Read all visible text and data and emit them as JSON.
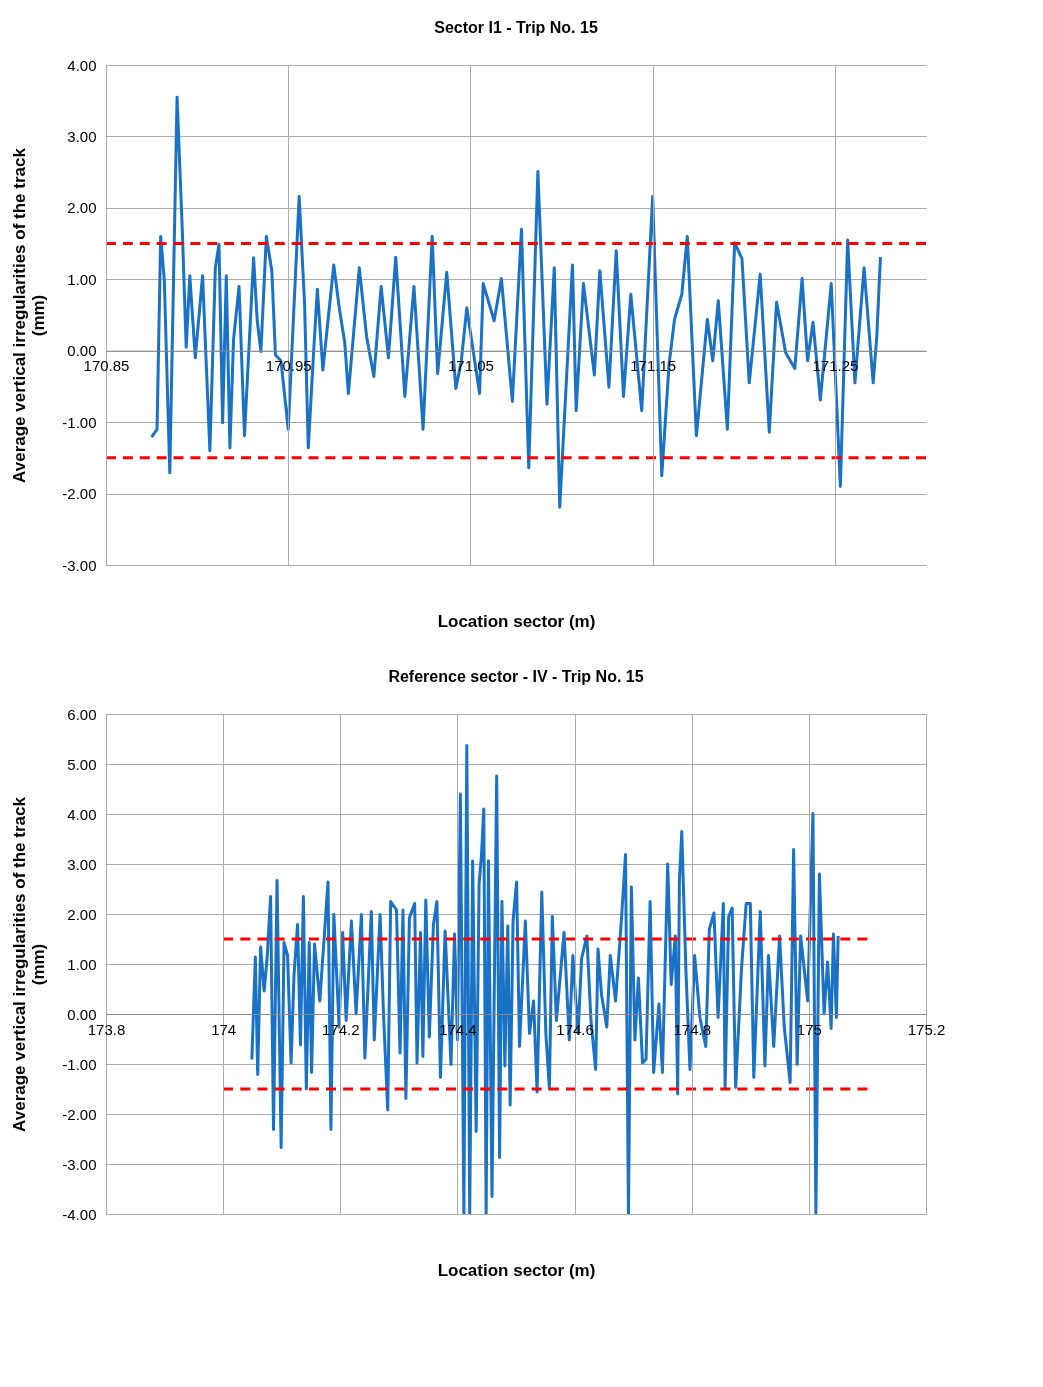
{
  "chart_data": [
    {
      "type": "line",
      "title": "Sector I1 - Trip No. 15",
      "xlabel": "Location sector (m)",
      "ylabel": "Average vertical irregularities of the track\n(mm)",
      "xlim": [
        170.85,
        171.3
      ],
      "xticks": [
        170.85,
        170.95,
        171.05,
        171.15,
        171.25
      ],
      "ylim": [
        -3,
        4
      ],
      "yticks": [
        {
          "value": -3,
          "label": "-3.00"
        },
        {
          "value": -2,
          "label": "-2.00"
        },
        {
          "value": -1,
          "label": "-1.00"
        },
        {
          "value": 0,
          "label": "0.00"
        },
        {
          "value": 1,
          "label": "1.00"
        },
        {
          "value": 2,
          "label": "2.00"
        },
        {
          "value": 3,
          "label": "3.00"
        },
        {
          "value": 4,
          "label": "4.00"
        }
      ],
      "grid": true,
      "ref_lines": [
        {
          "axis": "y",
          "value": 1.5,
          "color": "#ff0000",
          "line_style": "dashed"
        },
        {
          "axis": "y",
          "value": -1.5,
          "color": "#ff0000",
          "line_style": "dashed"
        }
      ],
      "series": [
        {
          "color": "#1a72c6",
          "x": [
            170.875,
            170.878,
            170.88,
            170.882,
            170.885,
            170.889,
            170.892,
            170.894,
            170.896,
            170.899,
            170.903,
            170.907,
            170.91,
            170.912,
            170.914,
            170.916,
            170.918,
            170.92,
            170.923,
            170.926,
            170.931,
            170.933,
            170.935,
            170.938,
            170.941,
            170.943,
            170.946,
            170.95,
            170.956,
            170.959,
            170.961,
            170.964,
            170.966,
            170.969,
            170.975,
            170.978,
            170.981,
            170.983,
            170.989,
            170.993,
            170.997,
            171.001,
            171.005,
            171.009,
            171.014,
            171.019,
            171.024,
            171.029,
            171.032,
            171.037,
            171.042,
            171.045,
            171.048,
            171.055,
            171.057,
            171.063,
            171.067,
            171.073,
            171.078,
            171.082,
            171.087,
            171.092,
            171.096,
            171.099,
            171.106,
            171.108,
            171.112,
            171.118,
            171.121,
            171.126,
            171.13,
            171.134,
            171.138,
            171.144,
            171.15,
            171.155,
            171.159,
            171.162,
            171.166,
            171.169,
            171.174,
            171.18,
            171.183,
            171.186,
            171.191,
            171.195,
            171.199,
            171.203,
            171.209,
            171.214,
            171.218,
            171.223,
            171.228,
            171.232,
            171.235,
            171.238,
            171.242,
            171.248,
            171.253,
            171.257,
            171.261,
            171.266,
            171.271,
            171.273,
            171.275
          ],
          "values": [
            -1.21,
            -1.1,
            1.6,
            0.99,
            -1.71,
            3.55,
            1.6,
            0.05,
            1.05,
            -0.1,
            1.05,
            -1.4,
            1.16,
            1.49,
            -1.01,
            1.05,
            -1.36,
            0.16,
            0.9,
            -1.19,
            1.3,
            0.42,
            -0.01,
            1.6,
            1.12,
            -0.06,
            -0.14,
            -1.1,
            2.16,
            0.64,
            -1.36,
            0.01,
            0.86,
            -0.27,
            1.2,
            0.6,
            0.12,
            -0.6,
            1.16,
            0.2,
            -0.36,
            0.9,
            -0.1,
            1.31,
            -0.64,
            0.9,
            -1.1,
            1.6,
            -0.32,
            1.1,
            -0.53,
            -0.14,
            0.6,
            -0.6,
            0.94,
            0.42,
            1.01,
            -0.71,
            1.7,
            -1.64,
            2.51,
            -0.75,
            1.16,
            -2.19,
            1.2,
            -0.84,
            0.94,
            -0.34,
            1.12,
            -0.51,
            1.4,
            -0.64,
            0.79,
            -0.84,
            2.16,
            -1.75,
            -0.19,
            0.44,
            0.79,
            1.6,
            -1.19,
            0.44,
            -0.14,
            0.7,
            -1.1,
            1.51,
            1.29,
            -0.45,
            1.07,
            -1.14,
            0.68,
            -0.03,
            -0.25,
            1.01,
            -0.14,
            0.4,
            -0.69,
            0.94,
            -1.9,
            1.55,
            -0.45,
            1.16,
            -0.45,
            0.2,
            1.31
          ]
        }
      ]
    },
    {
      "type": "line",
      "title": "Reference sector - IV - Trip No. 15",
      "xlabel": "Location sector (m)",
      "ylabel": "Average vertical irregularities of the track\n(mm)",
      "xlim": [
        173.8,
        175.2
      ],
      "xticks": [
        173.8,
        174,
        174.2,
        174.4,
        174.6,
        174.8,
        175,
        175.2
      ],
      "ylim": [
        -4,
        6
      ],
      "yticks": [
        {
          "value": -4,
          "label": "-4.00"
        },
        {
          "value": -3,
          "label": "-3.00"
        },
        {
          "value": -2,
          "label": "-2.00"
        },
        {
          "value": -1,
          "label": "-1.00"
        },
        {
          "value": 0,
          "label": "0.00"
        },
        {
          "value": 1,
          "label": "1.00"
        },
        {
          "value": 2,
          "label": "2.00"
        },
        {
          "value": 3,
          "label": "3.00"
        },
        {
          "value": 4,
          "label": "4.00"
        },
        {
          "value": 5,
          "label": "5.00"
        },
        {
          "value": 6,
          "label": "6.00"
        }
      ],
      "grid": true,
      "series": [
        {
          "color": "#1a72c6",
          "x": [
            174.049,
            174.055,
            174.059,
            174.064,
            174.07,
            174.075,
            174.081,
            174.086,
            174.092,
            174.099,
            174.104,
            174.11,
            174.116,
            174.121,
            174.127,
            174.132,
            174.137,
            174.142,
            174.147,
            174.151,
            174.156,
            174.165,
            174.179,
            174.184,
            174.189,
            174.198,
            174.204,
            174.21,
            174.219,
            174.227,
            174.236,
            174.242,
            174.253,
            174.258,
            174.268,
            174.274,
            174.281,
            174.286,
            174.296,
            174.302,
            174.307,
            174.312,
            174.318,
            174.327,
            174.331,
            174.337,
            174.341,
            174.346,
            174.352,
            174.359,
            174.365,
            174.371,
            174.379,
            174.389,
            174.395,
            174.4,
            174.405,
            174.411,
            174.416,
            174.421,
            174.426,
            174.432,
            174.437,
            174.441,
            174.445,
            174.449,
            174.453,
            174.459,
            174.467,
            174.472,
            174.476,
            174.481,
            174.486,
            174.49,
            174.495,
            174.501,
            174.506,
            174.516,
            174.523,
            174.53,
            174.536,
            174.544,
            174.551,
            174.557,
            174.562,
            174.569,
            174.582,
            174.591,
            174.597,
            174.606,
            174.612,
            174.621,
            174.628,
            174.636,
            174.64,
            174.646,
            174.655,
            174.661,
            174.67,
            174.68,
            174.687,
            174.692,
            174.697,
            174.703,
            174.709,
            174.716,
            174.722,
            174.729,
            174.735,
            174.744,
            174.75,
            174.759,
            174.765,
            174.772,
            174.776,
            174.779,
            174.783,
            174.79,
            174.797,
            174.805,
            174.814,
            174.824,
            174.83,
            174.838,
            174.845,
            174.854,
            174.857,
            174.863,
            174.869,
            174.875,
            174.885,
            174.893,
            174.9,
            174.906,
            174.917,
            174.925,
            174.931,
            174.94,
            174.95,
            174.958,
            174.968,
            174.974,
            174.98,
            174.986,
            174.998,
            175.007,
            175.012,
            175.018,
            175.026,
            175.032,
            175.038,
            175.042,
            175.047,
            175.05
          ],
          "values": [
            -0.91,
            1.14,
            -1.21,
            1.34,
            0.46,
            1.11,
            2.35,
            -2.31,
            2.67,
            -2.67,
            1.43,
            1.17,
            -0.98,
            0.78,
            1.79,
            -0.62,
            2.35,
            -1.5,
            1.43,
            -1.17,
            1.4,
            0.26,
            2.64,
            -2.31,
            1.99,
            -0.26,
            1.63,
            -0.13,
            1.86,
            0.0,
            1.99,
            -0.88,
            2.05,
            -0.52,
            1.99,
            -0.07,
            -1.92,
            2.25,
            2.08,
            -0.78,
            2.08,
            -1.69,
            1.92,
            2.21,
            -0.98,
            1.63,
            -0.85,
            2.28,
            -0.46,
            1.79,
            2.25,
            -1.27,
            1.66,
            -1.01,
            1.6,
            -0.52,
            4.4,
            -4.0,
            5.37,
            -4.0,
            3.06,
            -2.35,
            2.61,
            3.16,
            4.1,
            -4.0,
            3.06,
            -3.65,
            4.76,
            -2.87,
            2.25,
            -1.04,
            1.76,
            -1.82,
            1.86,
            2.64,
            -0.65,
            1.86,
            -0.39,
            0.26,
            -1.56,
            2.44,
            -0.39,
            -1.5,
            1.95,
            -0.13,
            1.63,
            -0.52,
            1.17,
            -0.39,
            1.11,
            1.56,
            -0.13,
            -1.11,
            1.3,
            0.39,
            -0.26,
            1.17,
            0.26,
            1.89,
            3.19,
            -4.0,
            2.54,
            -0.52,
            0.72,
            -0.98,
            -0.91,
            2.25,
            -1.17,
            0.2,
            -1.17,
            3.0,
            0.59,
            1.56,
            -1.6,
            2.67,
            3.65,
            0.91,
            -1.11,
            1.17,
            -0.07,
            -0.65,
            1.69,
            2.02,
            -0.07,
            2.21,
            -1.47,
            1.95,
            2.12,
            -1.47,
            0.91,
            2.21,
            2.21,
            -1.27,
            2.05,
            -1.04,
            1.17,
            -0.65,
            1.56,
            -0.26,
            -1.37,
            3.29,
            -1.01,
            1.56,
            0.26,
            4.01,
            -4.0,
            2.8,
            0.0,
            1.04,
            -0.29,
            1.6,
            -0.07,
            1.56
          ]
        },
        {
          "type": "line",
          "color": "#ff0000",
          "line_style": "dashed",
          "x": [
            174.0,
            175.1
          ],
          "values": [
            1.5,
            1.5
          ]
        },
        {
          "type": "line",
          "color": "#ff0000",
          "line_style": "dashed",
          "x": [
            174.0,
            175.1
          ],
          "values": [
            -1.5,
            -1.5
          ]
        }
      ]
    }
  ]
}
